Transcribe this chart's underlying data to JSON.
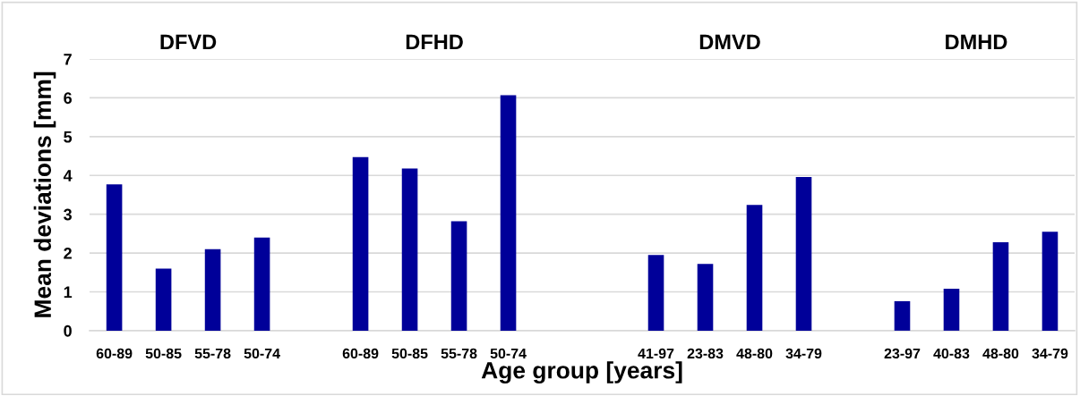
{
  "chart_data": {
    "type": "bar",
    "xlabel": "Age group [years]",
    "ylabel": "Mean deviations [mm]",
    "categories": [
      "60-89",
      "50-85",
      "55-78",
      "50-74",
      null,
      "60-89",
      "50-85",
      "55-78",
      "50-74",
      null,
      null,
      "41-97",
      "23-83",
      "48-80",
      "34-79",
      null,
      "23-97",
      "40-83",
      "48-80",
      "34-79"
    ],
    "values": [
      3.77,
      1.6,
      2.1,
      2.4,
      null,
      4.47,
      4.18,
      2.82,
      6.07,
      null,
      null,
      1.95,
      1.72,
      3.24,
      3.96,
      null,
      0.76,
      1.08,
      2.28,
      2.55
    ],
    "color": "#000099",
    "annotations": [
      "DFVD",
      "DFHD",
      "DMVD",
      "DMHD"
    ],
    "ylim": [
      0,
      7
    ],
    "yticks": [
      0,
      1,
      2,
      3,
      4,
      5,
      6,
      7
    ],
    "grid": "y"
  }
}
